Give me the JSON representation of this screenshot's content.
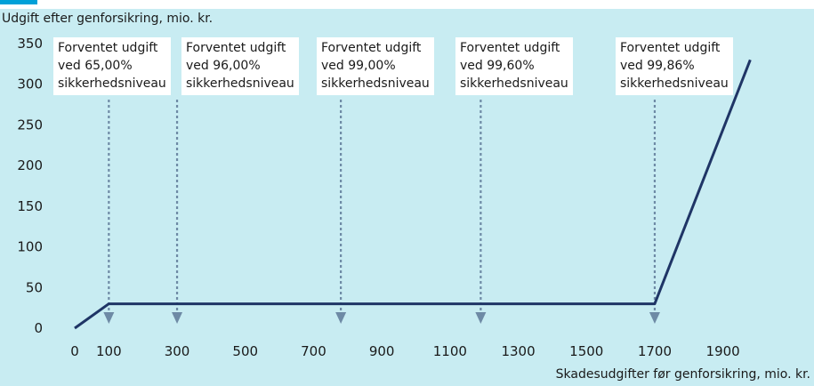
{
  "chart_data": {
    "type": "line",
    "ylabel": "Udgift efter genforsikring, mio. kr.",
    "xlabel": "Skadesudgifter før genforsikring, mio. kr.",
    "x": [
      0,
      100,
      300,
      500,
      700,
      900,
      1100,
      1300,
      1500,
      1700,
      1900
    ],
    "yticks": [
      0,
      50,
      100,
      150,
      200,
      250,
      300,
      350
    ],
    "xlim": [
      -40,
      2040
    ],
    "ylim": [
      0,
      350
    ],
    "series": [
      {
        "x": [
          0,
          100,
          1700,
          1980
        ],
        "y": [
          0,
          30,
          30,
          330
        ]
      }
    ],
    "annotations": [
      {
        "x": 100,
        "lines": [
          "Forventet udgift",
          "ved 65,00%",
          "sikkerhedsniveau"
        ]
      },
      {
        "x": 300,
        "lines": [
          "Forventet udgift",
          "ved 96,00%",
          "sikkerhedsniveau"
        ]
      },
      {
        "x": 780,
        "lines": [
          "Forventet udgift",
          "ved 99,00%",
          "sikkerhedsniveau"
        ]
      },
      {
        "x": 1190,
        "lines": [
          "Forventet udgift",
          "ved 99,60%",
          "sikkerhedsniveau"
        ]
      },
      {
        "x": 1700,
        "lines": [
          "Forventet udgift",
          "ved 99,86%",
          "sikkerhedsniveau"
        ]
      }
    ],
    "grid": false,
    "colors": {
      "background": "#c8ecf2",
      "line": "#1f3566",
      "annotation": "#6e8aa5"
    }
  }
}
